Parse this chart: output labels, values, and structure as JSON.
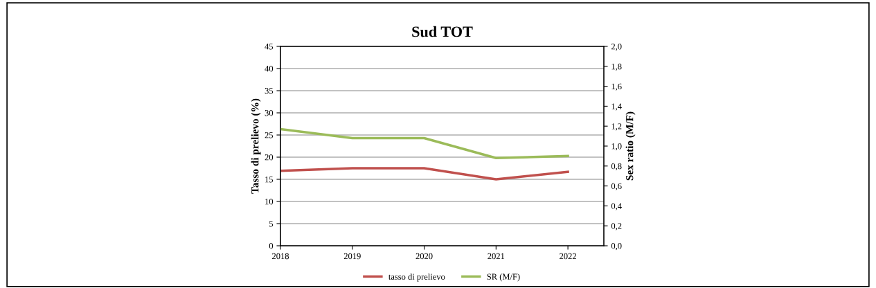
{
  "chart_data": {
    "type": "line",
    "title": "Sud TOT",
    "ylabel": "Tasso di prelievo (%)",
    "y2label": "Sex ratio (M/F)",
    "x": [
      2018,
      2019,
      2020,
      2021,
      2022
    ],
    "series": [
      {
        "name": "tasso di prelievo",
        "color": "#c0504d",
        "values": [
          16.9,
          17.5,
          17.5,
          15.0,
          16.7
        ]
      },
      {
        "name": "SR (M/F)",
        "color": "#9bbb59",
        "axis": "y2",
        "values": [
          1.17,
          1.08,
          1.08,
          0.88,
          0.9
        ]
      }
    ],
    "xlim": [
      2018,
      2022.5
    ],
    "xticks": [
      2018,
      2019,
      2020,
      2021,
      2022
    ],
    "ylim": [
      0,
      45
    ],
    "yticks": [
      0,
      5,
      10,
      15,
      20,
      25,
      30,
      35,
      40,
      45
    ],
    "y2lim": [
      0,
      2
    ],
    "y2ticks": [
      {
        "value": 0,
        "label": "0,0"
      },
      {
        "value": 0.2,
        "label": "0,2"
      },
      {
        "value": 0.4,
        "label": "0,4"
      },
      {
        "value": 0.6,
        "label": "0,6"
      },
      {
        "value": 0.8,
        "label": "0,8"
      },
      {
        "value": 1.0,
        "label": "1,0"
      },
      {
        "value": 1.2,
        "label": "1,2"
      },
      {
        "value": 1.4,
        "label": "1,4"
      },
      {
        "value": 1.6,
        "label": "1,6"
      },
      {
        "value": 1.8,
        "label": "1,8"
      },
      {
        "value": 2.0,
        "label": "2,0"
      }
    ],
    "grid": "y",
    "legend": "bottom",
    "marker": "none",
    "line_style": "solid"
  }
}
